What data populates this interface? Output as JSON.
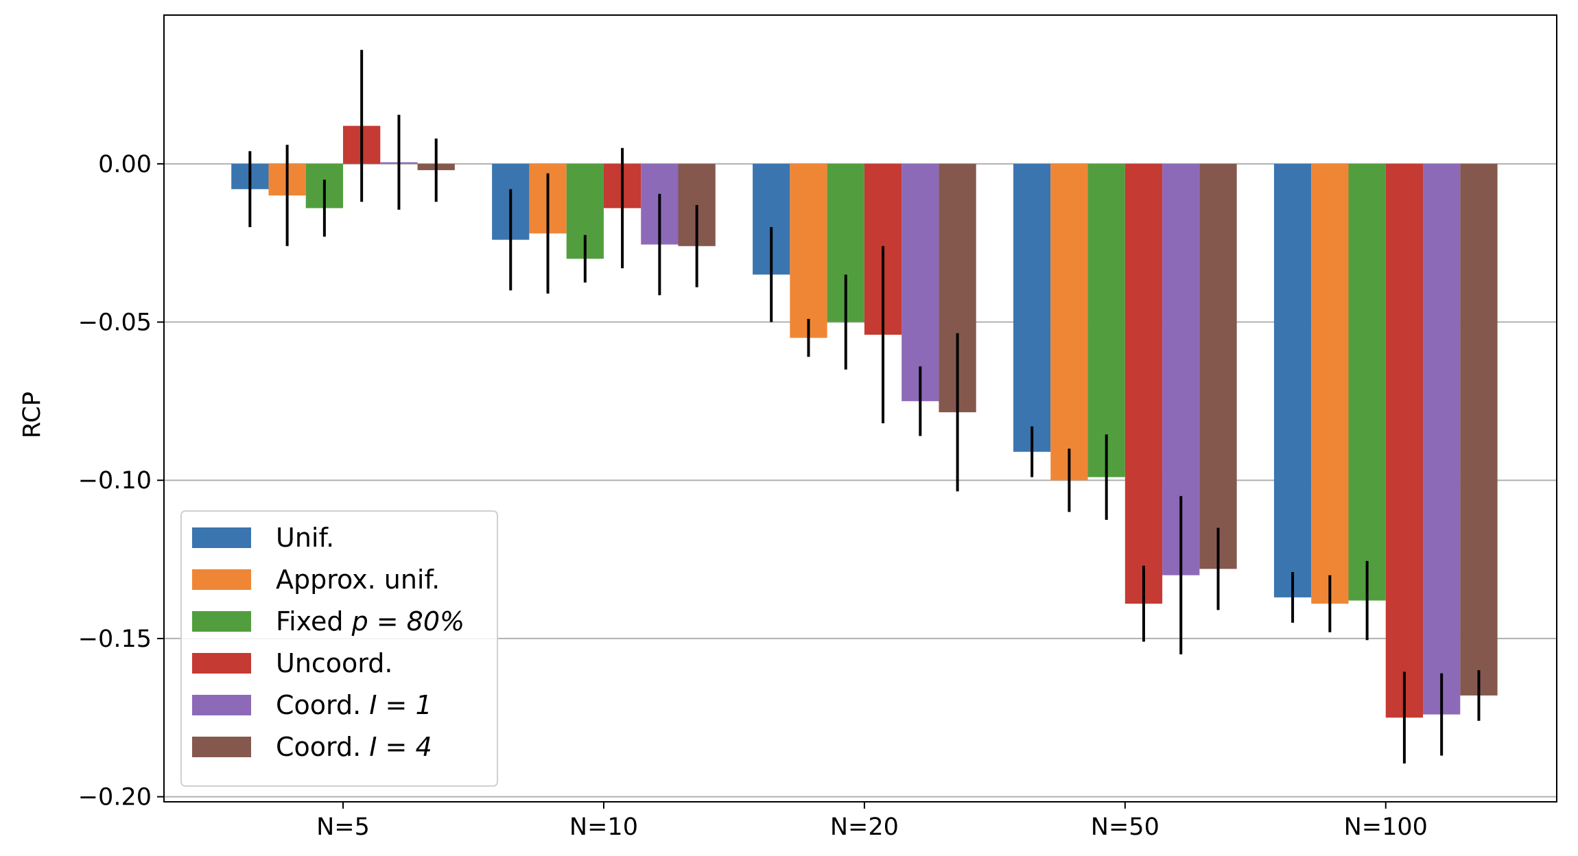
{
  "chart_data": {
    "type": "bar",
    "title": "",
    "xlabel": "",
    "ylabel": "RCP",
    "categories": [
      "N=5",
      "N=10",
      "N=20",
      "N=50",
      "N=100"
    ],
    "ylim": [
      -0.2016,
      0.047
    ],
    "yticks": [
      0.0,
      -0.05,
      -0.1,
      -0.15,
      -0.2
    ],
    "ytick_labels": [
      "0.00",
      "−0.05",
      "−0.10",
      "−0.15",
      "−0.20"
    ],
    "grid": "horizontal",
    "legend_position": "lower-left",
    "series": [
      {
        "name": "Unif.",
        "color": "#3a75af",
        "values": [
          -0.008,
          -0.024,
          -0.035,
          -0.091,
          -0.137
        ],
        "errors": [
          0.012,
          0.016,
          0.015,
          0.008,
          0.008
        ]
      },
      {
        "name": "Approx. unif.",
        "color": "#ef8636",
        "values": [
          -0.01,
          -0.022,
          -0.055,
          -0.1,
          -0.139
        ],
        "errors": [
          0.016,
          0.019,
          0.006,
          0.01,
          0.009
        ]
      },
      {
        "name": "Fixed",
        "name_math": "p = 80%",
        "color": "#529e3f",
        "values": [
          -0.014,
          -0.03,
          -0.05,
          -0.099,
          -0.138
        ],
        "errors": [
          0.009,
          0.0075,
          0.015,
          0.0135,
          0.0125
        ]
      },
      {
        "name": "Uncoord.",
        "color": "#c53a32",
        "values": [
          0.012,
          -0.014,
          -0.054,
          -0.139,
          -0.175
        ],
        "errors": [
          0.024,
          0.019,
          0.028,
          0.012,
          0.0145
        ]
      },
      {
        "name": "Coord.",
        "name_math": "I = 1",
        "color": "#8d6ab8",
        "values": [
          0.0005,
          -0.0255,
          -0.075,
          -0.13,
          -0.174
        ],
        "errors": [
          0.015,
          0.016,
          0.011,
          0.025,
          0.013
        ]
      },
      {
        "name": "Coord.",
        "name_math": "I = 4",
        "color": "#85584e",
        "values": [
          -0.002,
          -0.026,
          -0.0785,
          -0.128,
          -0.168
        ],
        "errors": [
          0.01,
          0.013,
          0.025,
          0.013,
          0.008
        ]
      }
    ]
  }
}
